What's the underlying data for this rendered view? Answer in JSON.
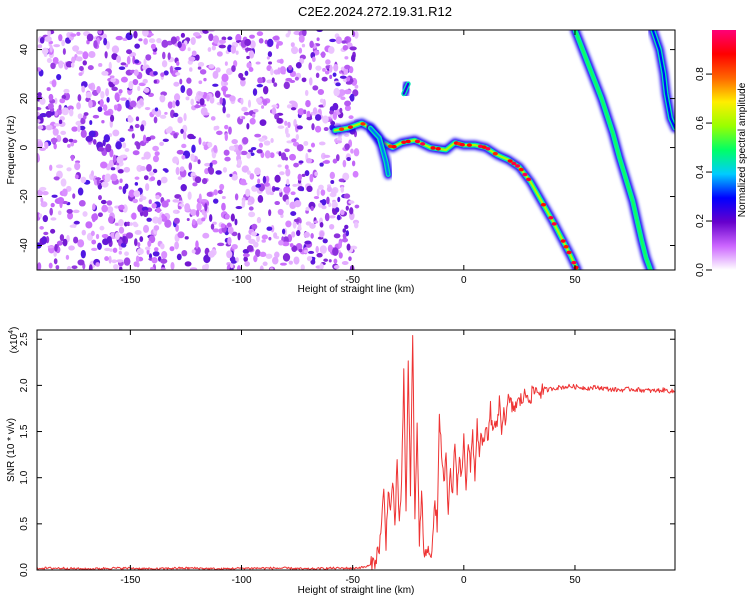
{
  "title": "C2E2.2024.272.19.31.R12",
  "chart_data": [
    {
      "type": "heatmap",
      "xlabel": "Height of straight line (km)",
      "ylabel": "Frequency (Hz)",
      "xlim": [
        -192,
        95
      ],
      "ylim": [
        -50,
        48
      ],
      "x_ticks": [
        -150,
        -100,
        -50,
        0,
        50
      ],
      "x_tick_labels": [
        "-150",
        "-100",
        "-50",
        "0",
        "50"
      ],
      "y_ticks": [
        40,
        20,
        0,
        -20,
        -40
      ],
      "y_tick_labels": [
        "40",
        "20",
        "0",
        "-20",
        "-40"
      ],
      "colorbar": {
        "label": "Normalized spectral amplitude",
        "range": [
          0,
          0.98
        ],
        "ticks": [
          0.0,
          0.2,
          0.4,
          0.6,
          0.8
        ],
        "tick_labels": [
          "0.0",
          "0.2",
          "0.4",
          "0.6",
          "0.8"
        ],
        "colormap": [
          "#ffffff",
          "#cc66ff",
          "#6600cc",
          "#0000ff",
          "#00ccff",
          "#00ff66",
          "#99ff00",
          "#ffee00",
          "#ff6600",
          "#ff0000",
          "#ff0077"
        ]
      },
      "noise_region": {
        "x": [
          -192,
          -50
        ],
        "y": [
          -50,
          48
        ],
        "level": [
          0.02,
          0.25
        ]
      },
      "traces": [
        {
          "name": "",
          "points": [
            [
              -58,
              7
            ],
            [
              -52,
              8
            ],
            [
              -46,
              10
            ],
            [
              -42,
              8
            ],
            [
              -38,
              3
            ],
            [
              -32,
              0
            ],
            [
              -28,
              2
            ],
            [
              -22,
              3
            ],
            [
              -15,
              0
            ],
            [
              -8,
              -1
            ],
            [
              -4,
              2
            ],
            [
              0,
              1
            ],
            [
              5,
              1
            ],
            [
              10,
              0
            ],
            [
              15,
              -3
            ],
            [
              20,
              -5
            ],
            [
              25,
              -8
            ],
            [
              30,
              -14
            ],
            [
              35,
              -22
            ],
            [
              40,
              -30
            ],
            [
              44,
              -37
            ],
            [
              48,
              -44
            ],
            [
              51,
              -50
            ]
          ],
          "level": 0.7
        },
        {
          "name": "",
          "points": [
            [
              -42,
              8
            ],
            [
              -38,
              4
            ],
            [
              -35,
              -6
            ],
            [
              -34,
              -11
            ]
          ],
          "level": 0.35
        },
        {
          "name": "",
          "points": [
            [
              -27,
              22
            ],
            [
              -25,
              26
            ]
          ],
          "level": 0.25
        },
        {
          "name": "",
          "points": [
            [
              50,
              48
            ],
            [
              56,
              34
            ],
            [
              62,
              20
            ],
            [
              67,
              6
            ],
            [
              70,
              -4
            ],
            [
              73,
              -13
            ],
            [
              76,
              -22
            ],
            [
              78,
              -30
            ],
            [
              80,
              -38
            ],
            [
              82,
              -45
            ],
            [
              84,
              -50
            ]
          ],
          "level": 0.5
        },
        {
          "name": "",
          "points": [
            [
              85,
              48
            ],
            [
              88,
              40
            ],
            [
              90,
              30
            ],
            [
              91,
              22
            ],
            [
              93,
              12
            ],
            [
              95,
              8
            ]
          ],
          "level": 0.3
        }
      ]
    },
    {
      "type": "line",
      "xlabel": "Height of straight line (km)",
      "ylabel": "SNR (10 * v/v)",
      "y_scale_label": "(x10",
      "y_scale_exponent": "4",
      "xlim": [
        -192,
        95
      ],
      "ylim": [
        0,
        2.6
      ],
      "x_ticks": [
        -150,
        -100,
        -50,
        0,
        50
      ],
      "x_tick_labels": [
        "-150",
        "-100",
        "-50",
        "0",
        "50"
      ],
      "y_ticks": [
        0,
        0.5,
        1.0,
        1.5,
        2.0,
        2.5
      ],
      "y_tick_labels": [
        "0.0",
        "0.5",
        "1.0",
        "1.5",
        "2.0",
        "2.5"
      ],
      "series": [
        {
          "color": "#ee3333",
          "x": [
            -192,
            -180,
            -170,
            -160,
            -150,
            -140,
            -130,
            -120,
            -110,
            -100,
            -90,
            -80,
            -70,
            -60,
            -50,
            -45,
            -42,
            -40,
            -38,
            -37,
            -36,
            -35,
            -34,
            -33,
            -32,
            -31,
            -30,
            -29,
            -28,
            -27,
            -26,
            -25,
            -24,
            -23,
            -22,
            -21,
            -20,
            -19,
            -18,
            -17,
            -16,
            -15,
            -14,
            -13,
            -12,
            -11,
            -10,
            -9,
            -8,
            -7,
            -6,
            -5,
            -4,
            -3,
            -2,
            -1,
            0,
            1,
            2,
            3,
            4,
            5,
            6,
            7,
            8,
            9,
            10,
            11,
            12,
            13,
            14,
            15,
            16,
            17,
            18,
            19,
            20,
            22,
            24,
            26,
            28,
            30,
            32,
            34,
            36,
            38,
            40,
            44,
            48,
            52,
            56,
            60,
            65,
            70,
            75,
            80,
            85,
            90,
            95
          ],
          "y": [
            0.02,
            0.02,
            0.01,
            0.02,
            0.02,
            0.01,
            0.02,
            0.02,
            0.01,
            0.02,
            0.02,
            0.02,
            0.01,
            0.02,
            0.02,
            0.03,
            0.05,
            0.1,
            0.25,
            0.5,
            0.85,
            0.3,
            0.9,
            0.6,
            1.0,
            0.4,
            1.2,
            0.5,
            0.9,
            2.1,
            0.6,
            2.3,
            0.8,
            2.6,
            0.5,
            1.6,
            0.3,
            0.8,
            0.25,
            0.1,
            0.3,
            0.15,
            0.35,
            0.7,
            0.5,
            1.6,
            1.3,
            0.9,
            1.2,
            0.6,
            1.1,
            0.8,
            1.4,
            0.9,
            1.2,
            1.0,
            1.5,
            0.9,
            1.35,
            1.1,
            1.5,
            1.0,
            1.6,
            1.2,
            1.5,
            1.3,
            1.55,
            1.4,
            1.75,
            1.45,
            1.65,
            1.5,
            1.8,
            1.55,
            1.75,
            1.6,
            1.85,
            1.75,
            1.8,
            1.85,
            1.9,
            1.88,
            1.95,
            1.93,
            1.96,
            1.95,
            1.97,
            1.98,
            1.99,
            1.98,
            1.97,
            1.98,
            1.96,
            1.95,
            1.96,
            1.95,
            1.94,
            1.95,
            1.93
          ]
        }
      ]
    }
  ]
}
